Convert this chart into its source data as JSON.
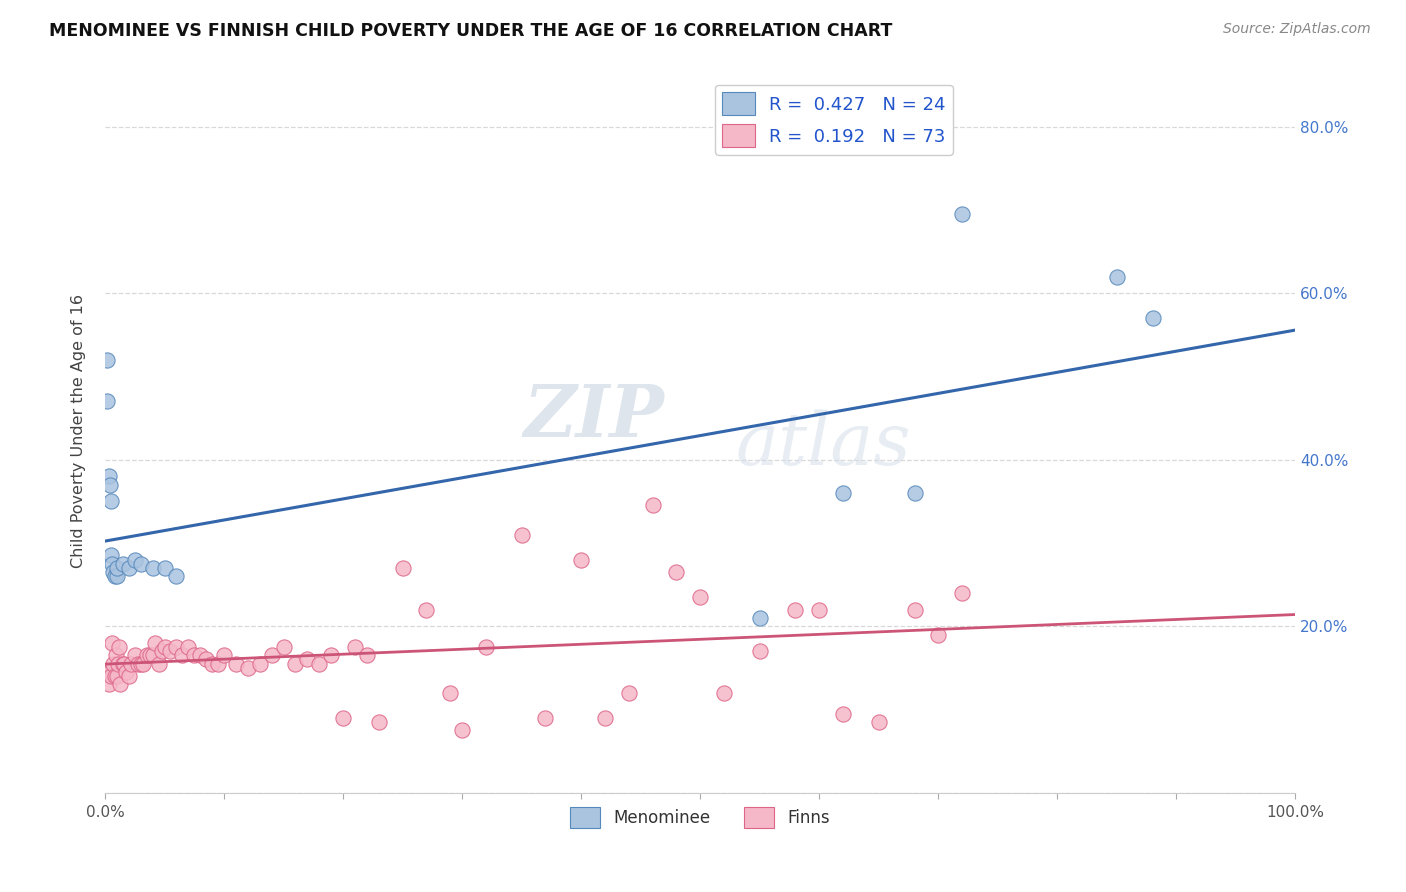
{
  "title": "MENOMINEE VS FINNISH CHILD POVERTY UNDER THE AGE OF 16 CORRELATION CHART",
  "source": "Source: ZipAtlas.com",
  "ylabel": "Child Poverty Under the Age of 16",
  "xlabel": "",
  "xlim": [
    0,
    1.0
  ],
  "ylim": [
    0,
    0.87
  ],
  "bg_color": "#ffffff",
  "grid_color": "#d8d8d8",
  "menominee_fill": "#aac4e0",
  "menominee_edge": "#5588bb",
  "finns_fill": "#f5b8c8",
  "finns_edge": "#dd6688",
  "menominee_line_color": "#3366aa",
  "finns_line_color": "#cc5577",
  "R_menominee": 0.427,
  "N_menominee": 24,
  "R_finns": 0.192,
  "N_finns": 73,
  "legend_label_1": "Menominee",
  "legend_label_2": "Finns",
  "watermark_top": "ZIP",
  "watermark_bottom": "atlas",
  "menominee_x": [
    0.002,
    0.002,
    0.003,
    0.004,
    0.005,
    0.005,
    0.006,
    0.007,
    0.008,
    0.01,
    0.01,
    0.015,
    0.02,
    0.025,
    0.03,
    0.04,
    0.05,
    0.06,
    0.55,
    0.62,
    0.68,
    0.72,
    0.85,
    0.88
  ],
  "menominee_y": [
    0.52,
    0.47,
    0.38,
    0.37,
    0.35,
    0.285,
    0.275,
    0.265,
    0.26,
    0.26,
    0.27,
    0.275,
    0.27,
    0.28,
    0.275,
    0.27,
    0.27,
    0.26,
    0.21,
    0.36,
    0.36,
    0.695,
    0.62,
    0.57
  ],
  "finns_x": [
    0.002,
    0.003,
    0.004,
    0.005,
    0.006,
    0.007,
    0.008,
    0.009,
    0.01,
    0.011,
    0.012,
    0.013,
    0.015,
    0.016,
    0.018,
    0.02,
    0.022,
    0.025,
    0.028,
    0.03,
    0.032,
    0.035,
    0.038,
    0.04,
    0.042,
    0.045,
    0.048,
    0.05,
    0.055,
    0.06,
    0.065,
    0.07,
    0.075,
    0.08,
    0.085,
    0.09,
    0.095,
    0.1,
    0.11,
    0.12,
    0.13,
    0.14,
    0.15,
    0.16,
    0.17,
    0.18,
    0.19,
    0.2,
    0.21,
    0.22,
    0.23,
    0.25,
    0.27,
    0.29,
    0.3,
    0.32,
    0.35,
    0.37,
    0.4,
    0.42,
    0.44,
    0.46,
    0.48,
    0.5,
    0.52,
    0.55,
    0.58,
    0.6,
    0.62,
    0.65,
    0.68,
    0.7,
    0.72
  ],
  "finns_y": [
    0.145,
    0.13,
    0.145,
    0.14,
    0.18,
    0.155,
    0.14,
    0.165,
    0.14,
    0.155,
    0.175,
    0.13,
    0.155,
    0.155,
    0.145,
    0.14,
    0.155,
    0.165,
    0.155,
    0.155,
    0.155,
    0.165,
    0.165,
    0.165,
    0.18,
    0.155,
    0.17,
    0.175,
    0.17,
    0.175,
    0.165,
    0.175,
    0.165,
    0.165,
    0.16,
    0.155,
    0.155,
    0.165,
    0.155,
    0.15,
    0.155,
    0.165,
    0.175,
    0.155,
    0.16,
    0.155,
    0.165,
    0.09,
    0.175,
    0.165,
    0.085,
    0.27,
    0.22,
    0.12,
    0.075,
    0.175,
    0.31,
    0.09,
    0.28,
    0.09,
    0.12,
    0.345,
    0.265,
    0.235,
    0.12,
    0.17,
    0.22,
    0.22,
    0.095,
    0.085,
    0.22,
    0.19,
    0.24
  ]
}
